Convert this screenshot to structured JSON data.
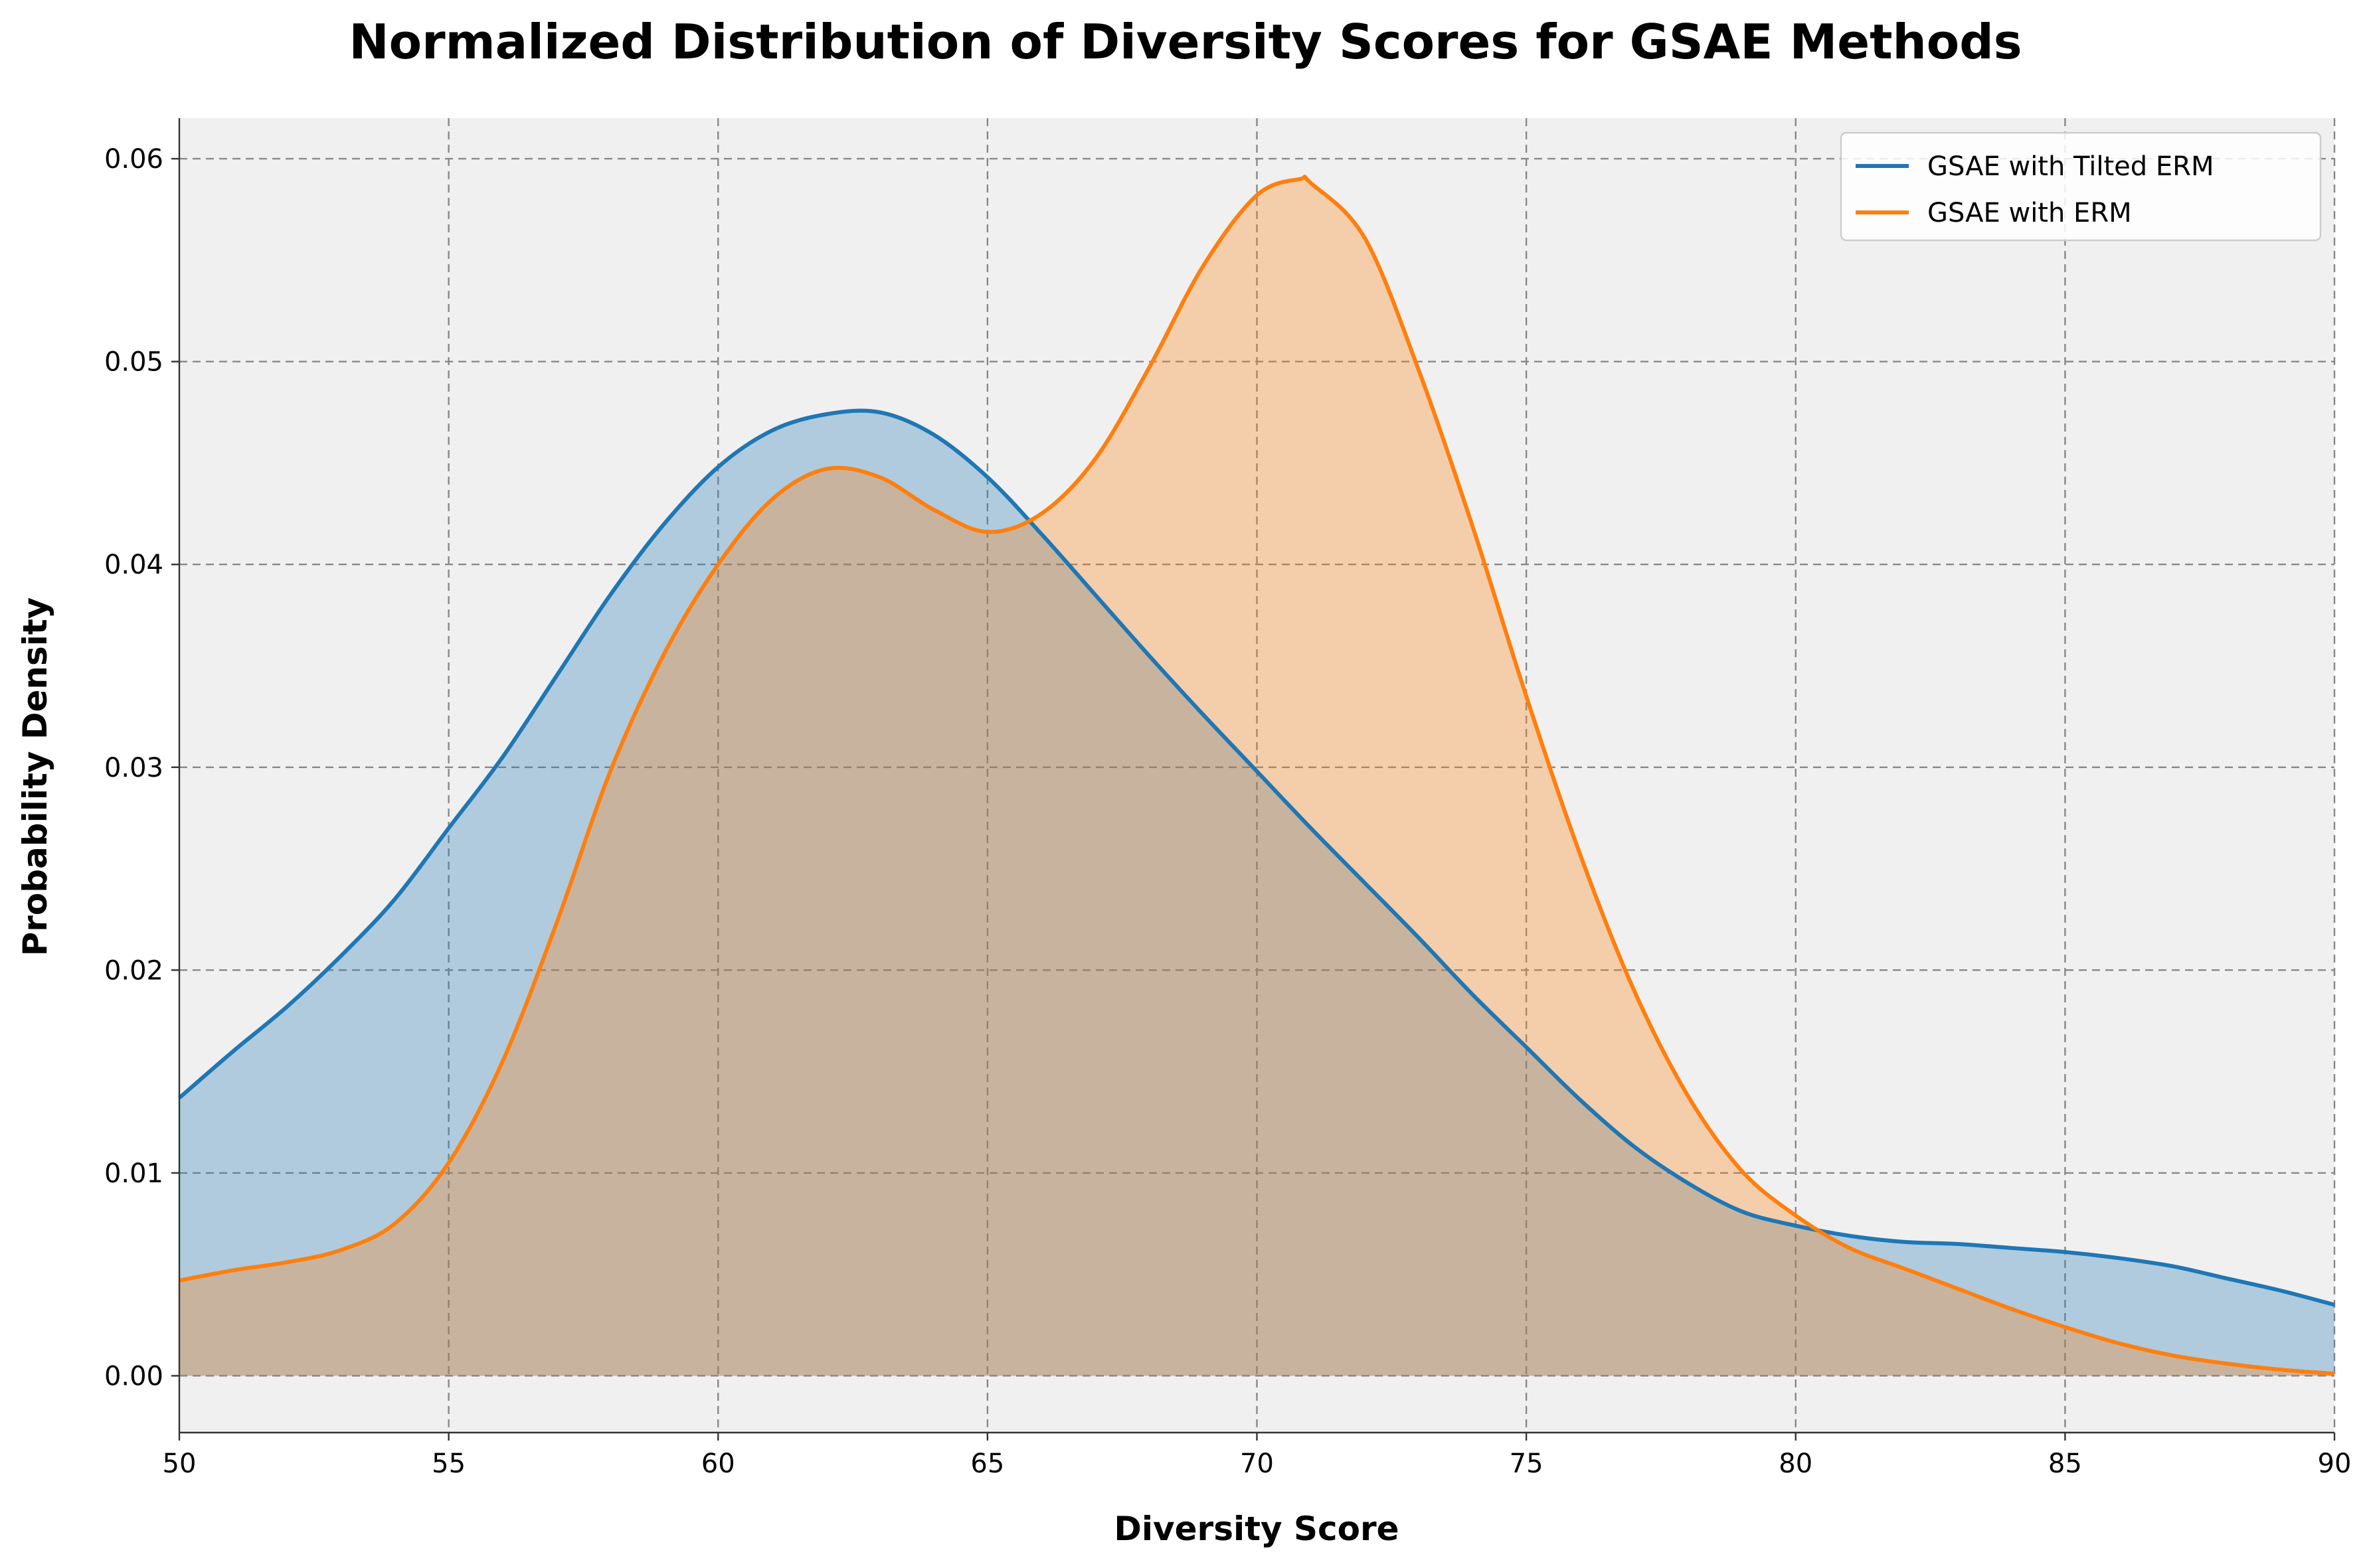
{
  "chart_data": {
    "type": "area",
    "title": "Normalized Distribution of Diversity Scores for GSAE Methods",
    "xlabel": "Diversity Score",
    "ylabel": "Probability Density",
    "xlim": [
      50,
      90
    ],
    "ylim": [
      -0.0028,
      0.062
    ],
    "grid": true,
    "background_color": "#f0f0f0",
    "legend_position": "top-right",
    "x_ticks": [
      50,
      55,
      60,
      65,
      70,
      75,
      80,
      85,
      90
    ],
    "x_tick_labels": [
      "50",
      "55",
      "60",
      "65",
      "70",
      "75",
      "80",
      "85",
      "90"
    ],
    "y_ticks": [
      0.0,
      0.01,
      0.02,
      0.03,
      0.04,
      0.05,
      0.06
    ],
    "y_tick_labels": [
      "0.00",
      "0.01",
      "0.02",
      "0.03",
      "0.04",
      "0.05",
      "0.06"
    ],
    "series": [
      {
        "name": "GSAE with Tilted ERM",
        "color": "#1f77b4",
        "fill_color": "#a9c6de",
        "points": [
          [
            50,
            0.0137
          ],
          [
            51,
            0.016
          ],
          [
            52,
            0.0182
          ],
          [
            53,
            0.0207
          ],
          [
            54,
            0.0235
          ],
          [
            55,
            0.027
          ],
          [
            56,
            0.0305
          ],
          [
            57,
            0.0345
          ],
          [
            58,
            0.0385
          ],
          [
            59,
            0.042
          ],
          [
            60,
            0.0448
          ],
          [
            61,
            0.0466
          ],
          [
            62,
            0.0474
          ],
          [
            63,
            0.0475
          ],
          [
            64,
            0.0464
          ],
          [
            65,
            0.0443
          ],
          [
            66,
            0.0415
          ],
          [
            67,
            0.0385
          ],
          [
            68,
            0.0355
          ],
          [
            69,
            0.0326
          ],
          [
            70,
            0.0298
          ],
          [
            71,
            0.027
          ],
          [
            72,
            0.0243
          ],
          [
            73,
            0.0216
          ],
          [
            74,
            0.0188
          ],
          [
            75,
            0.0162
          ],
          [
            76,
            0.0136
          ],
          [
            77,
            0.0113
          ],
          [
            78,
            0.0095
          ],
          [
            79,
            0.0081
          ],
          [
            80,
            0.0074
          ],
          [
            81,
            0.0069
          ],
          [
            82,
            0.0066
          ],
          [
            83,
            0.0065
          ],
          [
            84,
            0.0063
          ],
          [
            85,
            0.0061
          ],
          [
            86,
            0.0058
          ],
          [
            87,
            0.0054
          ],
          [
            88,
            0.0048
          ],
          [
            89,
            0.0042
          ],
          [
            90,
            0.0035
          ]
        ]
      },
      {
        "name": "GSAE with ERM",
        "color": "#ff7f0e",
        "fill_color": "#f5cba6",
        "points": [
          [
            50,
            0.0047
          ],
          [
            51,
            0.0052
          ],
          [
            52,
            0.0056
          ],
          [
            53,
            0.0062
          ],
          [
            54,
            0.0075
          ],
          [
            55,
            0.0105
          ],
          [
            56,
            0.0155
          ],
          [
            57,
            0.0223
          ],
          [
            58,
            0.0298
          ],
          [
            59,
            0.0356
          ],
          [
            60,
            0.04
          ],
          [
            61,
            0.0432
          ],
          [
            62,
            0.0447
          ],
          [
            63,
            0.0443
          ],
          [
            64,
            0.0427
          ],
          [
            65,
            0.0416
          ],
          [
            66,
            0.0425
          ],
          [
            67,
            0.0452
          ],
          [
            68,
            0.0497
          ],
          [
            69,
            0.0547
          ],
          [
            70,
            0.0582
          ],
          [
            70.8,
            0.059
          ],
          [
            71,
            0.0588
          ],
          [
            72,
            0.0561
          ],
          [
            73,
            0.0496
          ],
          [
            74,
            0.0419
          ],
          [
            75,
            0.0335
          ],
          [
            76,
            0.0257
          ],
          [
            77,
            0.019
          ],
          [
            78,
            0.0138
          ],
          [
            79,
            0.0101
          ],
          [
            80,
            0.0079
          ],
          [
            81,
            0.0063
          ],
          [
            82,
            0.0053
          ],
          [
            83,
            0.0043
          ],
          [
            84,
            0.0033
          ],
          [
            85,
            0.0024
          ],
          [
            86,
            0.0016
          ],
          [
            87,
            0.001
          ],
          [
            88,
            0.0006
          ],
          [
            89,
            0.0003
          ],
          [
            90,
            0.0001
          ]
        ]
      }
    ]
  }
}
